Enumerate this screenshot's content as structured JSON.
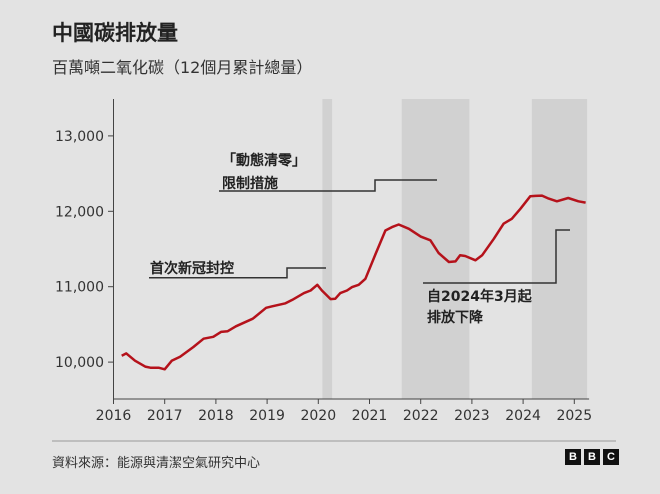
{
  "title": "中國碳排放量",
  "subtitle": "百萬噸二氧化碳（12個月累計總量）",
  "source": "資料來源：能源與清潔空氣研究中心",
  "logo": [
    "B",
    "B",
    "C"
  ],
  "colors": {
    "background": "#e3e3e3",
    "line": "#b5121b",
    "band": "#d1d1d1",
    "annotation": "#333333"
  },
  "chart_data": {
    "type": "line",
    "title": "中國碳排放量",
    "subtitle": "百萬噸二氧化碳（12個月累計總量）",
    "xlabel": "",
    "ylabel": "",
    "xlim": [
      2016,
      2025.25
    ],
    "ylim": [
      9700,
      13500
    ],
    "x_ticks": [
      "2016",
      "2017",
      "2018",
      "2019",
      "2020",
      "2021",
      "2022",
      "2023",
      "2024",
      "2025"
    ],
    "y_ticks": [
      10000,
      11000,
      12000,
      13000
    ],
    "y_tick_labels": [
      "10,000",
      "11,000",
      "12,000",
      "13,000"
    ],
    "grid": false,
    "shaded_periods": [
      [
        2020.08,
        2020.27
      ],
      [
        2021.63,
        2022.95
      ],
      [
        2024.17,
        2025.25
      ]
    ],
    "annotations": [
      {
        "text": [
          "首次新冠封控"
        ],
        "x": 2019.5
      },
      {
        "text": [
          "「動態清零」",
          "限制措施"
        ],
        "x": 2021.7
      },
      {
        "text": [
          "自2024年3月起",
          "排放下降"
        ],
        "x": 2024.6
      }
    ],
    "series": [
      {
        "x": [
          2016.16,
          2016.25,
          2016.42,
          2016.62,
          2016.72,
          2016.88,
          2017.0,
          2017.14,
          2017.3,
          2017.56,
          2017.76,
          2017.95,
          2018.1,
          2018.23,
          2018.39,
          2018.72,
          2018.98,
          2019.1,
          2019.36,
          2019.49,
          2019.72,
          2019.85,
          2019.98,
          2020.07,
          2020.24,
          2020.33,
          2020.43,
          2020.56,
          2020.66,
          2020.79,
          2020.92,
          2021.12,
          2021.31,
          2021.44,
          2021.57,
          2021.77,
          2022.0,
          2022.19,
          2022.35,
          2022.55,
          2022.68,
          2022.77,
          2022.87,
          2023.07,
          2023.2,
          2023.43,
          2023.62,
          2023.78,
          2023.95,
          2024.14,
          2024.24,
          2024.37,
          2024.5,
          2024.66,
          2024.88,
          2025.08,
          2025.22
        ],
        "y": [
          10085,
          10115,
          10019,
          9940,
          9926,
          9926,
          9905,
          10020,
          10070,
          10200,
          10310,
          10335,
          10400,
          10410,
          10475,
          10575,
          10720,
          10740,
          10780,
          10825,
          10915,
          10950,
          11025,
          10950,
          10835,
          10840,
          10915,
          10950,
          10995,
          11025,
          11105,
          11435,
          11745,
          11790,
          11825,
          11768,
          11665,
          11615,
          11447,
          11327,
          11336,
          11416,
          11407,
          11350,
          11416,
          11637,
          11835,
          11900,
          12035,
          12200,
          12204,
          12208,
          12168,
          12133,
          12177,
          12133,
          12115
        ]
      }
    ]
  }
}
